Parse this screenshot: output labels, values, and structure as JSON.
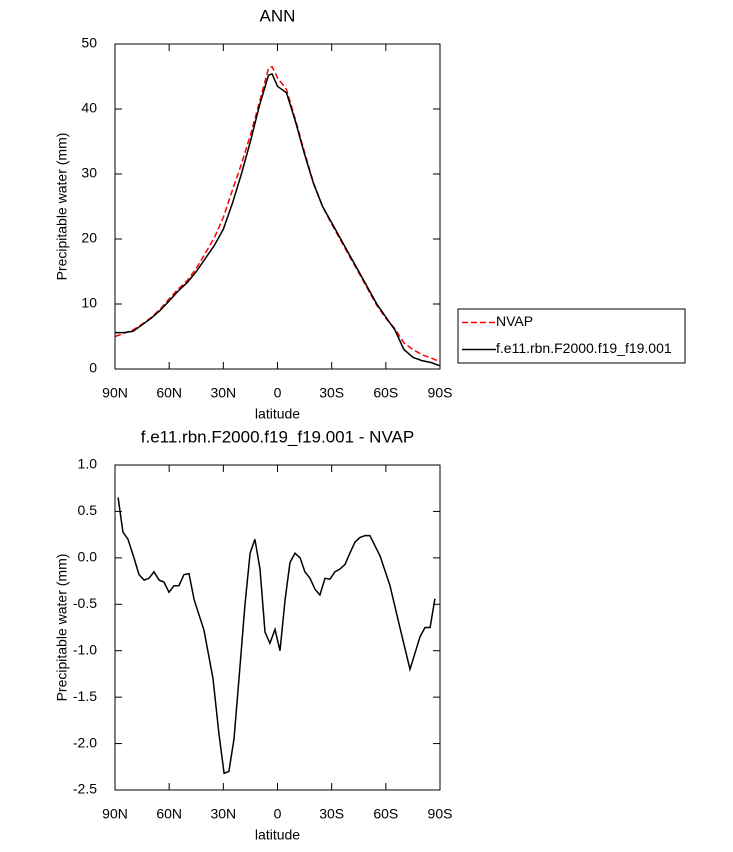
{
  "chart_data": [
    {
      "type": "line",
      "title": "ANN",
      "xlabel": "latitude",
      "ylabel": "Precipitable water (mm)",
      "x": [
        90,
        85,
        80,
        75,
        70,
        65,
        60,
        55,
        50,
        45,
        40,
        35,
        30,
        25,
        20,
        15,
        10,
        5,
        3,
        0,
        -5,
        -10,
        -15,
        -20,
        -25,
        -30,
        -35,
        -40,
        -45,
        -50,
        -55,
        -60,
        -65,
        -70,
        -75,
        -80,
        -85,
        -90
      ],
      "series": [
        {
          "name": "NVAP",
          "color": "#ff0000",
          "dash": true,
          "values": [
            5,
            5.5,
            6,
            6.9,
            7.9,
            9.2,
            10.8,
            12.3,
            13.6,
            15.5,
            17.8,
            20.2,
            23.3,
            27.5,
            31.5,
            36,
            41,
            46.3,
            46.5,
            44.8,
            43,
            38.3,
            33.3,
            28.6,
            25,
            22.3,
            19.8,
            17.3,
            14.8,
            12.3,
            9.8,
            7.8,
            6.2,
            4,
            3,
            2.2,
            1.7,
            1.1
          ]
        },
        {
          "name": "f.e11.rbn.F2000.f19_f19.001",
          "color": "#000000",
          "dash": false,
          "values": [
            5.6,
            5.6,
            5.8,
            6.8,
            7.8,
            9,
            10.5,
            12,
            13.3,
            15,
            17,
            19,
            21.5,
            25.5,
            30,
            35,
            40.5,
            45.2,
            45.4,
            43.5,
            42.5,
            38,
            33,
            28.5,
            25,
            22.5,
            20,
            17.5,
            15,
            12.5,
            10,
            8,
            6,
            3,
            1.8,
            1.3,
            1,
            0.5
          ]
        }
      ],
      "xlim": [
        90,
        -90
      ],
      "xticks": [
        {
          "value": 90,
          "label": "90N"
        },
        {
          "value": 60,
          "label": "60N"
        },
        {
          "value": 30,
          "label": "30N"
        },
        0,
        {
          "value": -30,
          "label": "30S"
        },
        {
          "value": -60,
          "label": "60S"
        },
        {
          "value": -90,
          "label": "90S"
        }
      ],
      "ylim": [
        0,
        50
      ],
      "yticks": [
        0,
        10,
        20,
        30,
        40,
        50
      ],
      "legend": "right"
    },
    {
      "type": "line",
      "title": "f.e11.rbn.F2000.f19_f19.001 - NVAP",
      "xlabel": "latitude",
      "ylabel": "Precipitable water (mm)",
      "x": [
        88.3,
        85.6,
        82.8,
        79.5,
        76.7,
        73.9,
        71.2,
        68.4,
        65.6,
        62.9,
        60.1,
        57.3,
        54.6,
        51.8,
        49.0,
        46.2,
        40.7,
        35.7,
        32.4,
        29.6,
        26.9,
        24.1,
        21.3,
        18.0,
        15.2,
        12.5,
        9.7,
        6.9,
        4.2,
        1.4,
        -1.4,
        -4.2,
        -6.9,
        -9.7,
        -12.5,
        -15.2,
        -18.0,
        -20.8,
        -23.5,
        -26.3,
        -29.1,
        -31.8,
        -34.6,
        -37.4,
        -40.1,
        -42.9,
        -45.7,
        -48.5,
        -51.2,
        -56.8,
        -62.3,
        -67.8,
        -73.4,
        -78.9,
        -81.7,
        -84.5,
        -87.2
      ],
      "series": [
        {
          "color": "#000000",
          "dash": false,
          "values": [
            0.65,
            0.28,
            0.2,
            0.0,
            -0.18,
            -0.24,
            -0.22,
            -0.15,
            -0.24,
            -0.26,
            -0.37,
            -0.3,
            -0.3,
            -0.18,
            -0.17,
            -0.45,
            -0.78,
            -1.3,
            -1.9,
            -2.32,
            -2.3,
            -1.95,
            -1.3,
            -0.5,
            0.05,
            0.2,
            -0.12,
            -0.8,
            -0.92,
            -0.77,
            -1.0,
            -0.45,
            -0.05,
            0.05,
            0.0,
            -0.15,
            -0.22,
            -0.34,
            -0.4,
            -0.22,
            -0.23,
            -0.15,
            -0.12,
            -0.07,
            0.05,
            0.17,
            0.22,
            0.24,
            0.24,
            0.02,
            -0.3,
            -0.75,
            -1.2,
            -0.85,
            -0.75,
            -0.75,
            -0.44
          ]
        }
      ],
      "xlim": [
        90,
        -90
      ],
      "xticks": [
        {
          "value": 90,
          "label": "90N"
        },
        {
          "value": 60,
          "label": "60N"
        },
        {
          "value": 30,
          "label": "30N"
        },
        0,
        {
          "value": -30,
          "label": "30S"
        },
        {
          "value": -60,
          "label": "60S"
        },
        {
          "value": -90,
          "label": "90S"
        }
      ],
      "ylim": [
        -2.5,
        1.0
      ],
      "yticks": [
        {
          "value": -2.5,
          "label": "-2.5"
        },
        {
          "value": -2.0,
          "label": "-2.0"
        },
        -1.5,
        {
          "value": -1.0,
          "label": "-1.0"
        },
        -0.5,
        {
          "value": 0.0,
          "label": "0.0"
        },
        0.5,
        {
          "value": 1.0,
          "label": "1.0"
        }
      ]
    }
  ]
}
